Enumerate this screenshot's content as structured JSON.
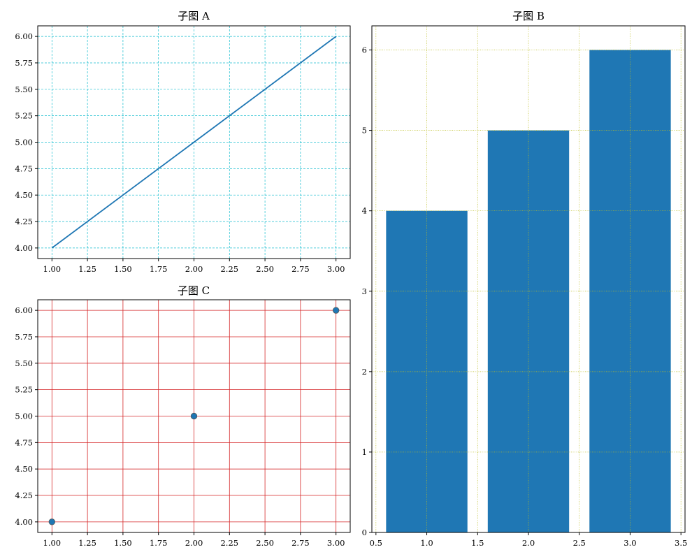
{
  "chart_data": [
    {
      "id": "a",
      "type": "line",
      "title": "子图 A",
      "x": [
        1,
        2,
        3
      ],
      "y": [
        4,
        5,
        6
      ],
      "xlim": [
        0.9,
        3.1
      ],
      "ylim": [
        3.9,
        6.1
      ],
      "xticks": [
        1.0,
        1.25,
        1.5,
        1.75,
        2.0,
        2.25,
        2.5,
        2.75,
        3.0
      ],
      "yticks": [
        4.0,
        4.25,
        4.5,
        4.75,
        5.0,
        5.25,
        5.5,
        5.75,
        6.0
      ],
      "tick_decimals": 2,
      "grid": true,
      "grid_style": "dashed",
      "grid_color": "#17becf",
      "line_color": "#1f77b4"
    },
    {
      "id": "c",
      "type": "scatter",
      "title": "子图 C",
      "x": [
        1,
        2,
        3
      ],
      "y": [
        4,
        5,
        6
      ],
      "xlim": [
        0.9,
        3.1
      ],
      "ylim": [
        3.9,
        6.1
      ],
      "xticks": [
        1.0,
        1.25,
        1.5,
        1.75,
        2.0,
        2.25,
        2.5,
        2.75,
        3.0
      ],
      "yticks": [
        4.0,
        4.25,
        4.5,
        4.75,
        5.0,
        5.25,
        5.5,
        5.75,
        6.0
      ],
      "tick_decimals": 2,
      "grid": true,
      "grid_style": "solid",
      "grid_color": "#d62728",
      "marker_color": "#1f77b4",
      "marker_edge_color": "#555555"
    },
    {
      "id": "b",
      "type": "bar",
      "title": "子图 B",
      "x": [
        1,
        2,
        3
      ],
      "values": [
        4,
        5,
        6
      ],
      "bar_width": 0.8,
      "xlim": [
        0.46,
        3.54
      ],
      "ylim": [
        0,
        6.3
      ],
      "xticks": [
        0.5,
        1.0,
        1.5,
        2.0,
        2.5,
        3.0,
        3.5
      ],
      "xtick_decimals": 1,
      "yticks": [
        0,
        1,
        2,
        3,
        4,
        5,
        6
      ],
      "ytick_decimals": 0,
      "grid": true,
      "grid_style": "dotted",
      "grid_color": "#bcbd22",
      "bar_color": "#1f77b4"
    }
  ]
}
